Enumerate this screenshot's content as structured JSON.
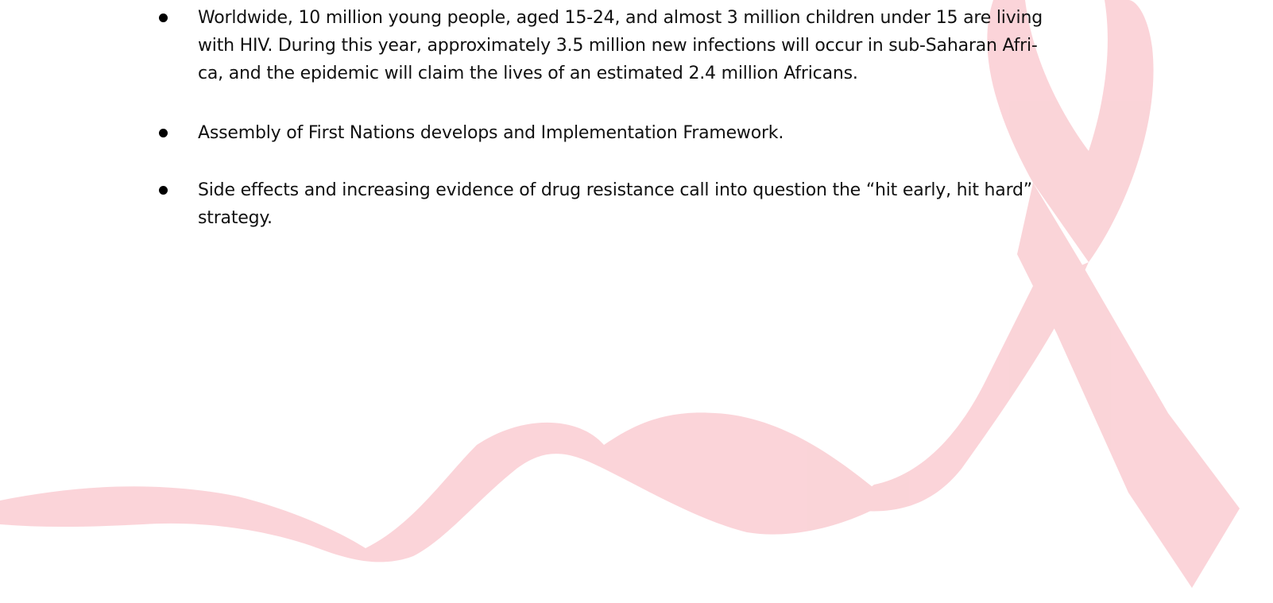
{
  "bullets": [
    {
      "lines": [
        "Worldwide, 10 million young people, aged 15-24, and almost 3 million children under 15 are living",
        "with HIV. During this year, approximately 3.5 million new infections will occur in sub-Saharan Afri-",
        "ca, and the epidemic will claim the lives of an estimated 2.4 million Africans."
      ]
    },
    {
      "lines": [
        "Assembly of First Nations develops and Implementation Framework."
      ]
    },
    {
      "lines": [
        "Side effects and increasing evidence of drug resistance call into question the “hit early, hit hard”",
        "strategy."
      ]
    }
  ]
}
